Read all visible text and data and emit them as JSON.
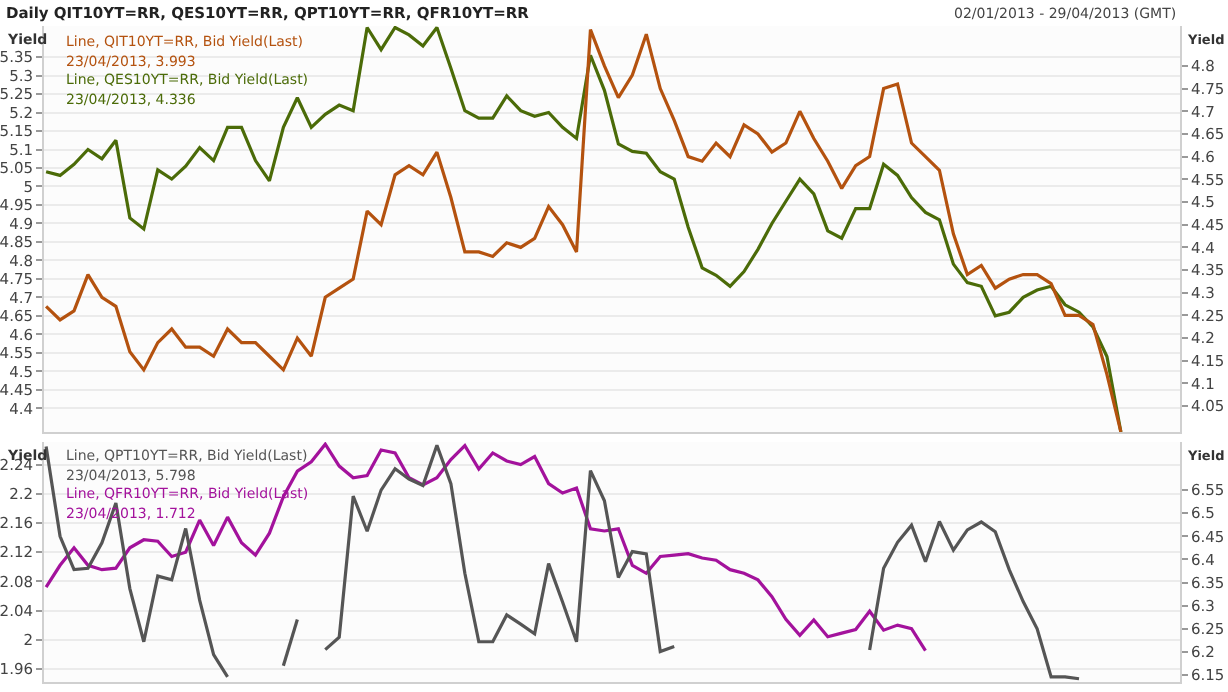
{
  "chart_data": [
    {
      "type": "line",
      "title": "Daily QIT10YT=RR, QES10YT=RR, QPT10YT=RR, QFR10YT=RR",
      "subtitle": "02/01/2013 - 29/04/2013 (GMT)",
      "ylabel": "Yield",
      "y2label": "Yield",
      "categories": [
        null,
        null,
        null,
        null,
        null,
        null,
        null,
        null,
        null,
        null,
        null,
        null,
        null,
        null,
        null,
        null,
        null,
        null,
        null,
        null,
        null,
        null,
        null,
        null,
        null,
        null,
        null,
        null,
        null,
        null,
        null,
        null,
        null,
        null,
        null,
        null,
        null,
        null,
        null,
        null,
        null,
        null,
        null,
        null,
        null,
        null,
        null,
        null,
        null,
        null,
        null,
        null,
        null,
        null,
        null,
        null,
        null,
        null,
        null,
        null,
        null,
        null,
        null,
        null,
        null,
        null,
        null,
        null,
        null,
        null,
        null,
        null,
        null,
        null,
        null,
        null,
        null,
        null
      ],
      "series": [
        {
          "name": "Line, QIT10YT=RR, Bid Yield(Last)",
          "color": "#b4520f",
          "axis": "y2",
          "values": [
            4.27,
            4.24,
            4.26,
            4.34,
            4.29,
            4.27,
            4.17,
            4.13,
            4.19,
            4.22,
            4.18,
            4.18,
            4.16,
            4.22,
            4.19,
            4.19,
            4.16,
            4.13,
            4.2,
            4.16,
            4.29,
            4.31,
            4.33,
            4.48,
            4.45,
            4.56,
            4.58,
            4.56,
            4.61,
            4.51,
            4.39,
            4.39,
            4.38,
            4.41,
            4.4,
            4.42,
            4.49,
            4.45,
            4.39,
            4.88,
            4.8,
            4.73,
            4.78,
            4.87,
            4.75,
            4.68,
            4.6,
            4.59,
            4.63,
            4.6,
            4.67,
            4.65,
            4.61,
            4.63,
            4.7,
            4.64,
            4.59,
            4.53,
            4.58,
            4.6,
            4.75,
            4.76,
            4.63,
            4.6,
            4.57,
            4.43,
            4.34,
            4.36,
            4.31,
            4.33,
            4.34,
            4.34,
            4.32,
            4.25,
            4.25,
            4.23,
            4.12,
            3.993
          ]
        },
        {
          "name": "Line, QES10YT=RR, Bid Yield(Last)",
          "color": "#4b6b08",
          "values": [
            5.04,
            5.03,
            5.06,
            5.1,
            5.075,
            5.125,
            4.915,
            4.885,
            5.045,
            5.02,
            5.055,
            5.105,
            5.07,
            5.16,
            5.16,
            5.07,
            5.015,
            5.16,
            5.24,
            5.16,
            5.195,
            5.22,
            5.205,
            5.43,
            5.37,
            5.43,
            5.41,
            5.38,
            5.43,
            5.32,
            5.205,
            5.185,
            5.185,
            5.245,
            5.205,
            5.19,
            5.2,
            5.16,
            5.13,
            5.355,
            5.26,
            5.115,
            5.095,
            5.09,
            5.04,
            5.02,
            4.89,
            4.78,
            4.76,
            4.73,
            4.77,
            4.83,
            4.9,
            4.96,
            5.02,
            4.98,
            4.88,
            4.86,
            4.94,
            4.94,
            5.06,
            5.03,
            4.97,
            4.93,
            4.91,
            4.79,
            4.74,
            4.73,
            4.65,
            4.66,
            4.7,
            4.72,
            4.73,
            4.68,
            4.66,
            4.62,
            4.54,
            4.336
          ]
        }
      ],
      "annotations": [
        "23/04/2013, 3.993",
        "23/04/2013, 4.336"
      ],
      "ylim": [
        4.336,
        5.434
      ],
      "yticks": [
        4.4,
        4.45,
        4.5,
        4.55,
        4.6,
        4.65,
        4.7,
        4.75,
        4.8,
        4.85,
        4.9,
        4.95,
        5,
        5.05,
        5.1,
        5.15,
        5.2,
        5.25,
        5.3,
        5.35
      ],
      "y2lim": [
        3.993,
        4.888
      ],
      "y2ticks": [
        4.05,
        4.1,
        4.15,
        4.2,
        4.25,
        4.3,
        4.35,
        4.4,
        4.45,
        4.5,
        4.55,
        4.6,
        4.65,
        4.7,
        4.75,
        4.8
      ],
      "grid": "y",
      "legend": "top left"
    },
    {
      "type": "line",
      "ylabel": "Yield",
      "y2label": "Yield",
      "categories": [
        null,
        null,
        null,
        null,
        null,
        null,
        null,
        null,
        null,
        null,
        null,
        null,
        null,
        null,
        null,
        null,
        null,
        null,
        null,
        null,
        null,
        null,
        null,
        null,
        null,
        null,
        null,
        null,
        null,
        null,
        null,
        null,
        null,
        null,
        null,
        null,
        null,
        null,
        null,
        null,
        null,
        null,
        null,
        null,
        null,
        null,
        null,
        null,
        null,
        null,
        null,
        null,
        null,
        null,
        null,
        null,
        null,
        null,
        null,
        null,
        null,
        null,
        null,
        null,
        null,
        null,
        null,
        null,
        null,
        null,
        null,
        null,
        null,
        null,
        null,
        null,
        null,
        null
      ],
      "series": [
        {
          "name": "Line, QPT10YT=RR, Bid Yield(Last)",
          "color": "#555555",
          "axis": "y2",
          "values": [
            6.644,
            6.45,
            6.378,
            6.381,
            6.436,
            6.522,
            6.337,
            6.222,
            6.364,
            6.356,
            6.467,
            6.312,
            6.194,
            6.146,
            null,
            null,
            null,
            6.17,
            6.27,
            null,
            6.205,
            6.232,
            6.537,
            6.461,
            6.55,
            6.596,
            6.574,
            6.56,
            6.647,
            6.564,
            6.37,
            6.222,
            6.222,
            6.28,
            6.26,
            6.239,
            6.391,
            6.308,
            6.222,
            6.592,
            6.527,
            6.361,
            6.417,
            6.412,
            6.201,
            6.212,
            null,
            null,
            null,
            null,
            null,
            null,
            null,
            null,
            null,
            null,
            null,
            null,
            null,
            6.204,
            6.381,
            6.437,
            6.474,
            6.395,
            6.482,
            6.42,
            6.464,
            6.481,
            6.46,
            6.378,
            6.309,
            6.25,
            6.146,
            6.146,
            6.142,
            null,
            null,
            null
          ]
        },
        {
          "name": "Line, QFR10YT=RR, Bid Yield(Last)",
          "color": "#a3129c",
          "values": [
            2.072,
            2.102,
            2.126,
            2.102,
            2.096,
            2.098,
            2.126,
            2.137,
            2.135,
            2.114,
            2.12,
            2.164,
            2.129,
            2.168,
            2.133,
            2.116,
            2.146,
            2.196,
            2.231,
            2.244,
            2.268,
            2.238,
            2.222,
            2.225,
            2.26,
            2.256,
            2.222,
            2.212,
            2.222,
            2.247,
            2.266,
            2.234,
            2.256,
            2.245,
            2.24,
            2.251,
            2.214,
            2.201,
            2.208,
            2.152,
            2.149,
            2.152,
            2.102,
            2.091,
            2.114,
            2.116,
            2.118,
            2.112,
            2.109,
            2.096,
            2.091,
            2.082,
            2.059,
            2.028,
            2.006,
            2.027,
            2.004,
            2.009,
            2.014,
            2.039,
            2.013,
            2.02,
            2.015,
            1.985,
            null,
            null,
            null,
            null,
            null,
            null,
            null,
            null,
            null,
            null,
            null,
            null,
            null,
            null
          ]
        }
      ],
      "annotations": [
        "23/04/2013, 5.798",
        "23/04/2013, 1.712"
      ],
      "ylim": [
        1.942,
        2.271
      ],
      "yticks": [
        1.96,
        2,
        2.04,
        2.08,
        2.12,
        2.16,
        2.2,
        2.24
      ],
      "y2lim": [
        6.135,
        6.654
      ],
      "y2ticks": [
        6.15,
        6.2,
        6.25,
        6.3,
        6.35,
        6.4,
        6.45,
        6.5,
        6.55
      ],
      "grid": "y",
      "legend": "top left"
    }
  ]
}
